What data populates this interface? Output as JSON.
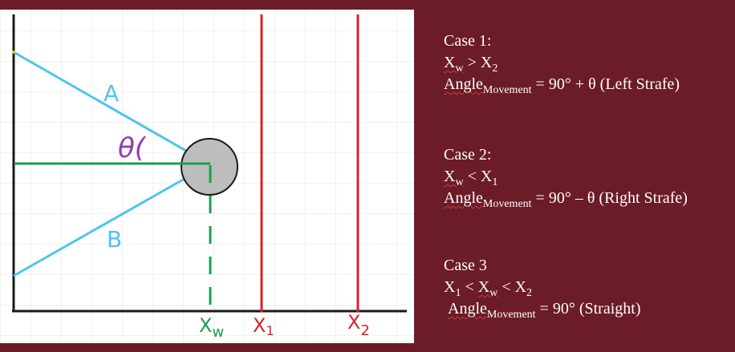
{
  "diagram": {
    "labels": {
      "line_a": "A",
      "line_b": "B",
      "angle": "θ(",
      "x_w": {
        "main": "X",
        "sub": "w"
      },
      "x_1": {
        "main": "X",
        "sub": "1"
      },
      "x_2": {
        "main": "X",
        "sub": "2"
      }
    },
    "colors": {
      "background": "#6b1c27",
      "grid_paper": "#ffffff",
      "grid_lines": "#e3e3e3",
      "axes": "#1a1a1a",
      "ray_lines": "#4fc3f0",
      "center_line": "#1b9e4b",
      "boundary_lines": "#d8202e",
      "angle_label": "#8e3fb2",
      "object": "#bdbdbd"
    }
  },
  "cases": [
    {
      "title": "Case 1:",
      "condition": {
        "left": "X",
        "left_sub": "w",
        "op": " > ",
        "right": "X",
        "right_sub": "2"
      },
      "angle_word": "Angle",
      "angle_sub": "Movement",
      "formula": " = 90° + θ (Left Strafe)"
    },
    {
      "title": "Case 2:",
      "condition": {
        "left": "X",
        "left_sub": "w",
        "op": " < ",
        "right": "X",
        "right_sub": "1"
      },
      "angle_word": "Angle",
      "angle_sub": "Movement",
      "formula": " = 90° – θ (Right Strafe)"
    },
    {
      "title": "Case 3",
      "condition": {
        "a": "X",
        "a_sub": "1",
        "op1": " < ",
        "b": "X",
        "b_sub": "w",
        "op2": " < ",
        "c": "X",
        "c_sub": "2"
      },
      "angle_word": "Angle",
      "angle_sub": "Movement",
      "formula": " = 90° (Straight)"
    }
  ]
}
